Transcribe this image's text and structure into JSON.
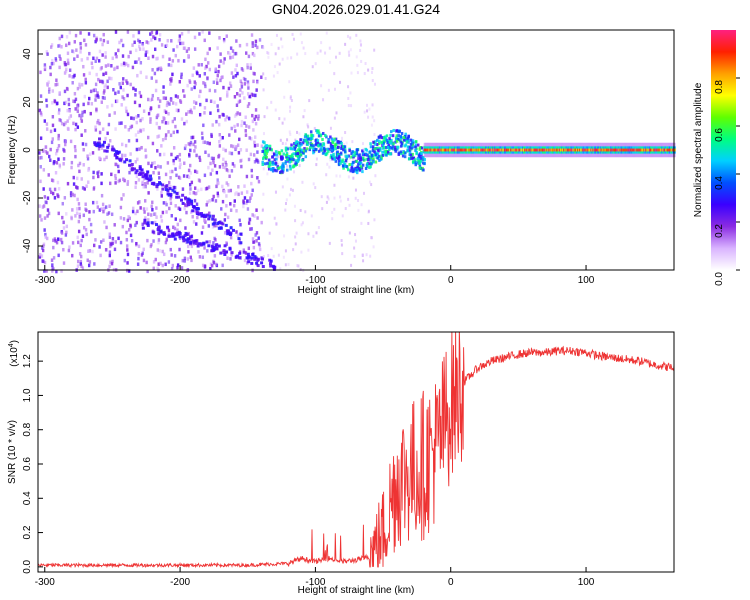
{
  "title": "GN04.2026.029.01.41.G24",
  "chart_data": [
    {
      "type": "heatmap",
      "xlabel": "Height of straight line (km)",
      "ylabel": "Frequency (Hz)",
      "xlim": [
        -305,
        165
      ],
      "ylim": [
        -50,
        50
      ],
      "xticks": [
        -300,
        -200,
        -100,
        0,
        100
      ],
      "yticks": [
        -40,
        -20,
        0,
        20,
        40
      ],
      "colorbar": {
        "label": "Normalized spectral amplitude",
        "range": [
          0,
          1
        ],
        "ticks": [
          "0.0",
          "0.2",
          "0.4",
          "0.6",
          "0.8"
        ],
        "colors": [
          "#ffffff",
          "#d9b3ff",
          "#8a2be2",
          "#3a00ff",
          "#0050ff",
          "#00d0ff",
          "#00ff80",
          "#60ff00",
          "#ffff00",
          "#ffa000",
          "#ff2000",
          "#ff2080"
        ]
      },
      "features": {
        "carrier_band_frequency_hz": 0,
        "noise_region_x_range": [
          -305,
          -140
        ],
        "transition_region_x_range": [
          -140,
          -20
        ],
        "stable_carrier_x_range": [
          -20,
          165
        ]
      }
    },
    {
      "type": "line",
      "xlabel": "Height of straight line (km)",
      "ylabel": "SNR (10 * v/v)",
      "y_scale_note": "(x10",
      "y_scale_exp": "4",
      "xlim": [
        -305,
        165
      ],
      "ylim": [
        -0.03,
        1.37
      ],
      "xticks": [
        -300,
        -200,
        -100,
        0,
        100
      ],
      "yticks": [
        "0.0",
        "0.2",
        "0.4",
        "0.6",
        "0.8",
        "1.0",
        "1.2"
      ],
      "line_color": "#ee3333",
      "series": [
        {
          "x": [
            -305,
            -250,
            -200,
            -150,
            -120,
            -110,
            -100,
            -90,
            -80,
            -70,
            -60,
            -50,
            -40,
            -30,
            -20,
            -10,
            0,
            10,
            20,
            30,
            40,
            50,
            60,
            70,
            80,
            90,
            100,
            110,
            120,
            130,
            140,
            150,
            165
          ],
          "y": [
            0.01,
            0.01,
            0.01,
            0.01,
            0.02,
            0.05,
            0.03,
            0.05,
            0.03,
            0.04,
            0.06,
            0.2,
            0.5,
            0.55,
            0.6,
            0.7,
            0.95,
            1.08,
            1.16,
            1.2,
            1.22,
            1.24,
            1.25,
            1.25,
            1.26,
            1.26,
            1.25,
            1.23,
            1.22,
            1.21,
            1.2,
            1.18,
            1.16
          ]
        }
      ]
    }
  ]
}
